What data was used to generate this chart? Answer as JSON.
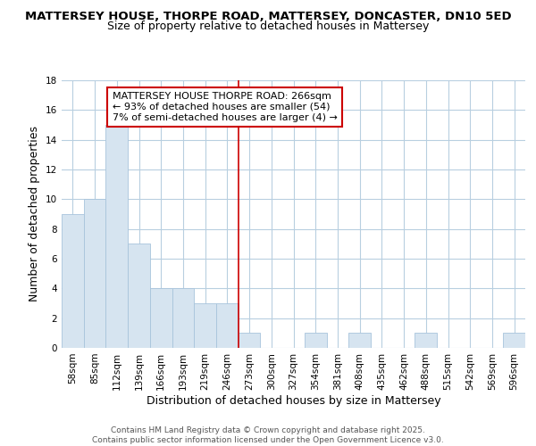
{
  "title_line1": "MATTERSEY HOUSE, THORPE ROAD, MATTERSEY, DONCASTER, DN10 5ED",
  "title_line2": "Size of property relative to detached houses in Mattersey",
  "xlabel": "Distribution of detached houses by size in Mattersey",
  "ylabel": "Number of detached properties",
  "categories": [
    "58sqm",
    "85sqm",
    "112sqm",
    "139sqm",
    "166sqm",
    "193sqm",
    "219sqm",
    "246sqm",
    "273sqm",
    "300sqm",
    "327sqm",
    "354sqm",
    "381sqm",
    "408sqm",
    "435sqm",
    "462sqm",
    "488sqm",
    "515sqm",
    "542sqm",
    "569sqm",
    "596sqm"
  ],
  "values": [
    9,
    10,
    15,
    7,
    4,
    4,
    3,
    3,
    1,
    0,
    0,
    1,
    0,
    1,
    0,
    0,
    1,
    0,
    0,
    0,
    1
  ],
  "bar_color": "#d6e4f0",
  "bar_edge_color": "#a8c4dc",
  "vline_color": "#cc0000",
  "vline_x_index": 8,
  "annotation_text": "MATTERSEY HOUSE THORPE ROAD: 266sqm\n← 93% of detached houses are smaller (54)\n7% of semi-detached houses are larger (4) →",
  "annotation_box_facecolor": "#ffffff",
  "annotation_box_edgecolor": "#cc0000",
  "ylim": [
    0,
    18
  ],
  "yticks": [
    0,
    2,
    4,
    6,
    8,
    10,
    12,
    14,
    16,
    18
  ],
  "bg_color": "#ffffff",
  "plot_bg_color": "#ffffff",
  "grid_color": "#b8cfe0",
  "footer_text": "Contains HM Land Registry data © Crown copyright and database right 2025.\nContains public sector information licensed under the Open Government Licence v3.0.",
  "title_fontsize": 9.5,
  "subtitle_fontsize": 9,
  "tick_fontsize": 7.5,
  "axis_label_fontsize": 9,
  "annotation_fontsize": 8,
  "footer_fontsize": 6.5
}
